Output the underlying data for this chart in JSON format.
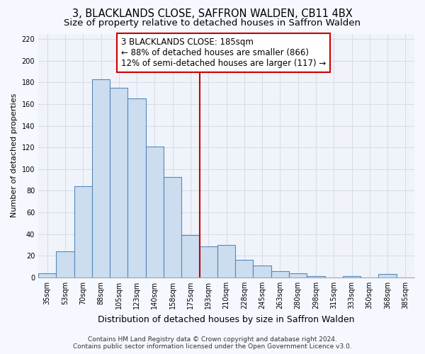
{
  "title1": "3, BLACKLANDS CLOSE, SAFFRON WALDEN, CB11 4BX",
  "title2": "Size of property relative to detached houses in Saffron Walden",
  "xlabel": "Distribution of detached houses by size in Saffron Walden",
  "ylabel": "Number of detached properties",
  "categories": [
    "35sqm",
    "53sqm",
    "70sqm",
    "88sqm",
    "105sqm",
    "123sqm",
    "140sqm",
    "158sqm",
    "175sqm",
    "193sqm",
    "210sqm",
    "228sqm",
    "245sqm",
    "263sqm",
    "280sqm",
    "298sqm",
    "315sqm",
    "333sqm",
    "350sqm",
    "368sqm",
    "385sqm"
  ],
  "values": [
    4,
    24,
    84,
    183,
    175,
    165,
    121,
    93,
    39,
    29,
    30,
    16,
    11,
    6,
    4,
    1,
    0,
    1,
    0,
    3,
    0
  ],
  "bar_color": "#ccddf0",
  "bar_edge_color": "#5588bb",
  "vline_x_index": 8.5,
  "vline_color": "#cc0000",
  "annotation_line1": "3 BLACKLANDS CLOSE: 185sqm",
  "annotation_line2": "← 88% of detached houses are smaller (866)",
  "annotation_line3": "12% of semi-detached houses are larger (117) →",
  "annotation_box_color": "#cc0000",
  "ylim": [
    0,
    225
  ],
  "yticks": [
    0,
    20,
    40,
    60,
    80,
    100,
    120,
    140,
    160,
    180,
    200,
    220
  ],
  "bg_color": "#f5f8ff",
  "plot_bg": "#f0f4fa",
  "grid_color": "#d8dce8",
  "footer": "Contains HM Land Registry data © Crown copyright and database right 2024.\nContains public sector information licensed under the Open Government Licence v3.0.",
  "title1_fontsize": 10.5,
  "title2_fontsize": 9.5,
  "xlabel_fontsize": 9,
  "ylabel_fontsize": 8,
  "tick_fontsize": 7,
  "annotation_fontsize": 8.5
}
